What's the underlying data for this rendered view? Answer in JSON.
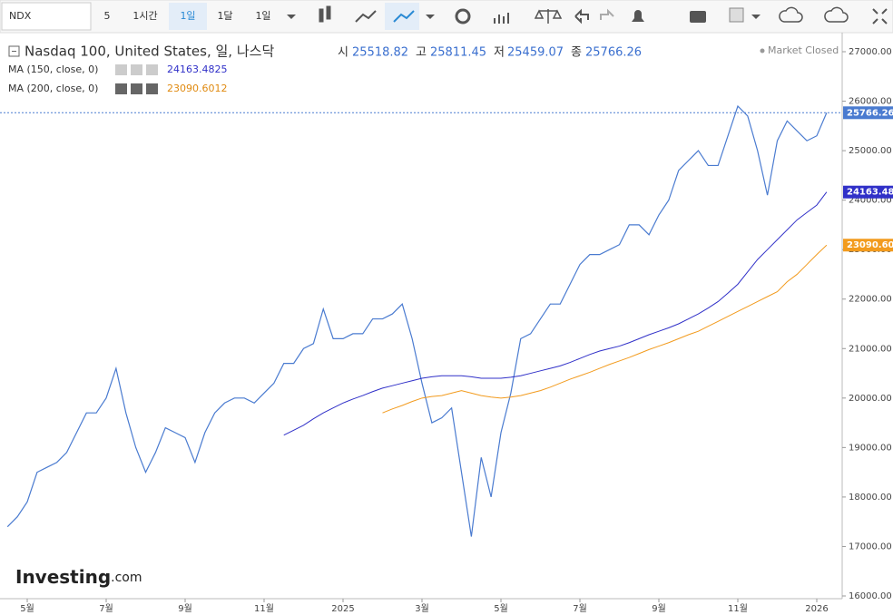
{
  "toolbar": {
    "symbol": "NDX",
    "interval": "5",
    "buttons": [
      "1시간",
      "1일",
      "1달",
      "1일"
    ]
  },
  "header": {
    "title": "Nasdaq 100, United States, 일, 나스닥",
    "open_label": "시",
    "open": 25518.82,
    "high_label": "고",
    "high": 25811.45,
    "low_label": "저",
    "low": 25459.07,
    "close_label": "종",
    "close": 25766.26,
    "status": "Market Closed"
  },
  "logo": {
    "brand": "Investing",
    "suffix": ".com"
  },
  "chart_data": {
    "type": "line",
    "categories": [
      null,
      null,
      "5월",
      null,
      null,
      null,
      null,
      null,
      null,
      null,
      "7월",
      null,
      null,
      null,
      null,
      null,
      null,
      null,
      "9월",
      null,
      null,
      null,
      null,
      null,
      null,
      null,
      "11월",
      null,
      null,
      null,
      null,
      null,
      null,
      null,
      "2025",
      null,
      null,
      null,
      null,
      null,
      null,
      null,
      "3월",
      null,
      null,
      null,
      null,
      null,
      null,
      null,
      "5월",
      null,
      null,
      null,
      null,
      null,
      null,
      null,
      "7월",
      null,
      null,
      null,
      null,
      null,
      null,
      null,
      "9월",
      null,
      null,
      null,
      null,
      null,
      null,
      null,
      "11월",
      null,
      null,
      null,
      null,
      null,
      null,
      null,
      "2026",
      null
    ],
    "series": [
      {
        "color": "#4a7bd0",
        "last_label": 25766.26,
        "values": [
          17400,
          17600,
          17900,
          18500,
          18600,
          18700,
          18900,
          19300,
          19700,
          19700,
          20000,
          20600,
          19700,
          19000,
          18500,
          18900,
          19400,
          19300,
          19200,
          18700,
          19300,
          19700,
          19900,
          20000,
          20000,
          19900,
          20100,
          20300,
          20700,
          20700,
          21000,
          21100,
          21800,
          21200,
          21200,
          21300,
          21300,
          21600,
          21600,
          21700,
          21900,
          21200,
          20300,
          19500,
          19600,
          19800,
          18500,
          17200,
          18800,
          18000,
          19300,
          20100,
          21200,
          21300,
          21600,
          21900,
          21900,
          22300,
          22700,
          22900,
          22900,
          23000,
          23100,
          23500,
          23500,
          23300,
          23700,
          24000,
          24600,
          24800,
          25000,
          24700,
          24700,
          25300,
          25900,
          25700,
          25000,
          24100,
          25200,
          25600,
          25400,
          25200,
          25300,
          25766.26
        ]
      },
      {
        "name": "MA (150, close, 0)",
        "color": "#3030c8",
        "legend_value": 24163.4825,
        "last_label": 24163.48,
        "values": [
          null,
          null,
          null,
          null,
          null,
          null,
          null,
          null,
          null,
          null,
          null,
          null,
          null,
          null,
          null,
          null,
          null,
          null,
          null,
          null,
          null,
          null,
          null,
          null,
          null,
          null,
          null,
          null,
          19250,
          19350,
          19450,
          19580,
          19700,
          19800,
          19900,
          19980,
          20050,
          20130,
          20200,
          20250,
          20300,
          20350,
          20400,
          20430,
          20450,
          20450,
          20450,
          20430,
          20400,
          20400,
          20400,
          20420,
          20450,
          20500,
          20550,
          20600,
          20650,
          20720,
          20800,
          20880,
          20950,
          21000,
          21050,
          21120,
          21200,
          21280,
          21350,
          21420,
          21500,
          21600,
          21700,
          21820,
          21950,
          22120,
          22300,
          22550,
          22800,
          23000,
          23200,
          23400,
          23600,
          23750,
          23900,
          24163.4825
        ]
      },
      {
        "name": "MA (200, close, 0)",
        "color": "#f29b1e",
        "legend_value": 23090.6012,
        "last_label": "23090.60",
        "values": [
          null,
          null,
          null,
          null,
          null,
          null,
          null,
          null,
          null,
          null,
          null,
          null,
          null,
          null,
          null,
          null,
          null,
          null,
          null,
          null,
          null,
          null,
          null,
          null,
          null,
          null,
          null,
          null,
          null,
          null,
          null,
          null,
          null,
          null,
          null,
          null,
          null,
          null,
          19700,
          19780,
          19850,
          19930,
          20000,
          20030,
          20050,
          20100,
          20150,
          20100,
          20050,
          20020,
          20000,
          20020,
          20050,
          20100,
          20150,
          20220,
          20300,
          20380,
          20450,
          20520,
          20600,
          20680,
          20750,
          20820,
          20900,
          20980,
          21050,
          21120,
          21200,
          21280,
          21350,
          21450,
          21550,
          21650,
          21750,
          21850,
          21950,
          22050,
          22150,
          22350,
          22500,
          22700,
          22900,
          23090.6012
        ]
      }
    ],
    "ylim": [
      16000,
      27000
    ],
    "yticks": [
      {
        "value": 16000,
        "label": "16000.00"
      },
      {
        "value": 17000,
        "label": "17000.00"
      },
      {
        "value": 18000,
        "label": "18000.00"
      },
      {
        "value": 19000,
        "label": "19000.00"
      },
      {
        "value": 20000,
        "label": "20000.00"
      },
      {
        "value": 21000,
        "label": "21000.00"
      },
      {
        "value": 22000,
        "label": "22000.00"
      },
      {
        "value": 23000,
        "label": "23000.00"
      },
      {
        "value": 24000,
        "label": "24000.00"
      },
      {
        "value": 25000,
        "label": "25000.00"
      },
      {
        "value": 26000,
        "label": "26000.00"
      },
      {
        "value": 27000,
        "label": "27000.00"
      }
    ],
    "grid": false
  }
}
